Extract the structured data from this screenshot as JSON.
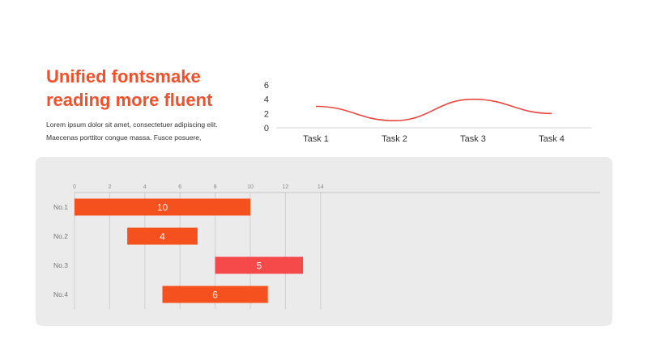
{
  "headline": {
    "line1": "Unified fontsmake",
    "line2": "reading more fluent"
  },
  "body": {
    "line1": "Lorem ipsum dolor sit amet, consectetuer adipiscing elit.",
    "line2": "Maecenas porttitor congue massa. Fusce posuere,"
  },
  "colors": {
    "accent": "#f2502a",
    "bar_orange": "#f4511e",
    "bar_red": "#f64a4a",
    "line": "#e8463f",
    "panel": "#ebebeb"
  },
  "chart_data": [
    {
      "type": "line",
      "categories": [
        "Task 1",
        "Task 2",
        "Task 3",
        "Task  4"
      ],
      "values": [
        3,
        1,
        4,
        2
      ],
      "smooth": true,
      "ylim": [
        0,
        6
      ],
      "yticks": [
        0,
        2,
        4,
        6
      ],
      "grid": false,
      "legend": "none"
    },
    {
      "type": "bar",
      "orientation": "horizontal",
      "stacked_offset": true,
      "categories": [
        "No.1",
        "No.2",
        "No.3",
        "No.4"
      ],
      "start": [
        0,
        3,
        8,
        5
      ],
      "values": [
        10,
        4,
        5,
        6
      ],
      "labels": [
        "10",
        "4",
        "5",
        "6"
      ],
      "bar_colors": [
        "#f4511e",
        "#f4511e",
        "#f64a4a",
        "#f4511e"
      ],
      "xlim": [
        0,
        15
      ],
      "xticks": [
        0,
        2,
        4,
        6,
        8,
        10,
        12,
        14
      ],
      "grid": "vertical",
      "legend": "none"
    }
  ]
}
